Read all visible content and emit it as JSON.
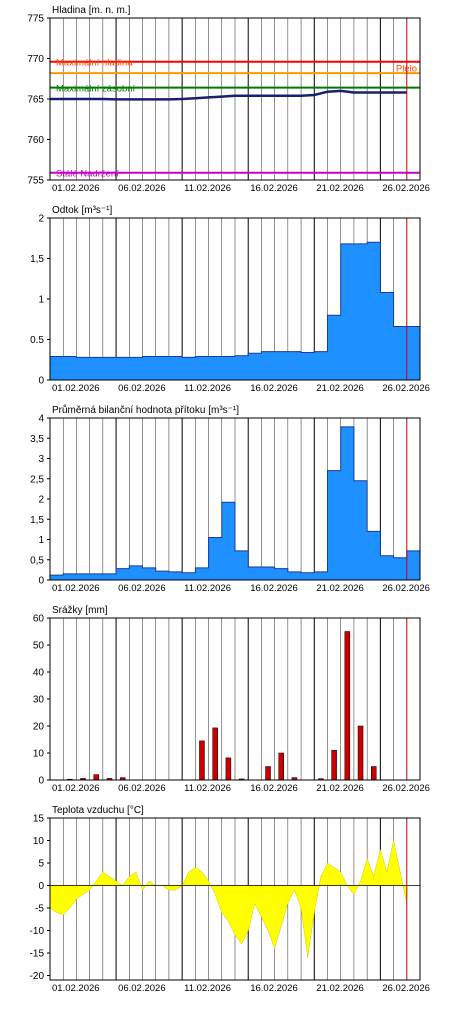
{
  "colors": {
    "frame": "#000000",
    "hladina_line": "#1a1f6e",
    "max_hladina": "#ff0000",
    "max_hladina_label": "#ff4500",
    "orange_line": "#ff9900",
    "max_zasobni": "#007a00",
    "stale_nadrzeni": "#cc00cc",
    "blue_fill": "#1e90ff",
    "blue_stroke": "#1a3a9e",
    "red_bar": "#cc0000",
    "temp_fill": "#ffff00",
    "today_marker": "#cc0000"
  },
  "x_axis": {
    "start_day": 1,
    "end_day": 29,
    "tick_labels": [
      "01.02.2026",
      "06.02.2026",
      "11.02.2026",
      "16.02.2026",
      "21.02.2026",
      "26.02.2026"
    ],
    "tick_days": [
      1,
      6,
      11,
      16,
      21,
      26
    ],
    "today_day": 28
  },
  "chart_data": [
    {
      "type": "line",
      "title": "Hladina [m. n. m.]",
      "ylim": [
        755,
        775
      ],
      "yticks": [
        755,
        760,
        765,
        770,
        775
      ],
      "reference_lines": [
        {
          "name": "Maximální hladina",
          "value": 769.6,
          "color": "#ff0000"
        },
        {
          "name": "",
          "value": 768.2,
          "color": "#ff9900"
        },
        {
          "name": "Maximální zásobní",
          "value": 766.4,
          "color": "#007a00"
        },
        {
          "name": "Stálé Nadržení",
          "value": 755.9,
          "color": "#cc00cc"
        }
      ],
      "right_label": "Plelo",
      "x": [
        1,
        2,
        3,
        4,
        5,
        6,
        7,
        8,
        9,
        10,
        11,
        12,
        13,
        14,
        15,
        16,
        17,
        18,
        19,
        20,
        21,
        22,
        23,
        24,
        25,
        26,
        27,
        28
      ],
      "values": [
        765.0,
        765.0,
        765.0,
        765.0,
        765.0,
        764.95,
        764.95,
        764.95,
        764.95,
        764.95,
        765.0,
        765.1,
        765.2,
        765.3,
        765.4,
        765.4,
        765.4,
        765.4,
        765.4,
        765.4,
        765.5,
        765.9,
        766.0,
        765.8,
        765.8,
        765.8,
        765.8,
        765.8
      ]
    },
    {
      "type": "area",
      "title": "Odtok [m³s⁻¹]",
      "ylim": [
        0,
        2
      ],
      "yticks": [
        0,
        0.5,
        1,
        1.5,
        2
      ],
      "ytick_labels": [
        "0",
        "0.5",
        "1",
        "1,5",
        "2"
      ],
      "x": [
        1,
        2,
        3,
        4,
        5,
        6,
        7,
        8,
        9,
        10,
        11,
        12,
        13,
        14,
        15,
        16,
        17,
        18,
        19,
        20,
        21,
        22,
        23,
        24,
        25,
        26,
        27,
        28
      ],
      "values": [
        0.29,
        0.29,
        0.28,
        0.28,
        0.28,
        0.28,
        0.28,
        0.29,
        0.29,
        0.29,
        0.28,
        0.29,
        0.29,
        0.29,
        0.3,
        0.33,
        0.35,
        0.35,
        0.35,
        0.34,
        0.35,
        0.8,
        1.68,
        1.68,
        1.7,
        1.08,
        0.66,
        0.66
      ]
    },
    {
      "type": "area",
      "title": "Průměrná bilanční hodnota přítoku [m³s⁻¹]",
      "ylim": [
        0,
        4
      ],
      "yticks": [
        0,
        0.5,
        1,
        1.5,
        2,
        2.5,
        3,
        3.5,
        4
      ],
      "ytick_labels": [
        "0",
        "0,5",
        "1",
        "1,5",
        "2",
        "2,5",
        "3",
        "3,5",
        "4"
      ],
      "x": [
        1,
        2,
        3,
        4,
        5,
        6,
        7,
        8,
        9,
        10,
        11,
        12,
        13,
        14,
        15,
        16,
        17,
        18,
        19,
        20,
        21,
        22,
        23,
        24,
        25,
        26,
        27,
        28
      ],
      "values": [
        0.12,
        0.15,
        0.15,
        0.15,
        0.15,
        0.28,
        0.35,
        0.3,
        0.22,
        0.2,
        0.18,
        0.3,
        1.05,
        1.92,
        0.72,
        0.32,
        0.32,
        0.28,
        0.2,
        0.18,
        0.2,
        2.7,
        3.78,
        2.45,
        1.2,
        0.6,
        0.55,
        0.72
      ]
    },
    {
      "type": "bar",
      "title": "Srážky [mm]",
      "ylim": [
        0,
        60
      ],
      "yticks": [
        0,
        10,
        20,
        30,
        40,
        50,
        60
      ],
      "x": [
        1,
        2,
        3,
        4,
        5,
        6,
        7,
        8,
        9,
        10,
        11,
        12,
        13,
        14,
        15,
        16,
        17,
        18,
        19,
        20,
        21,
        22,
        23,
        24,
        25,
        26,
        27,
        28
      ],
      "values": [
        0,
        0.3,
        0.6,
        2.0,
        0.6,
        0.9,
        0,
        0,
        0,
        0,
        0,
        14.5,
        19.3,
        8.2,
        0.4,
        0,
        5.0,
        10.0,
        0.9,
        0,
        0.5,
        11.0,
        55.0,
        20.0,
        5.0,
        0,
        0,
        0
      ]
    },
    {
      "type": "area",
      "title": "Teplota vzduchu [°C]",
      "ylim": [
        -21,
        15
      ],
      "yticks": [
        -20,
        -15,
        -10,
        -5,
        0,
        5,
        10,
        15
      ],
      "x": [
        1,
        1.5,
        2,
        2.5,
        3,
        3.5,
        4,
        4.5,
        5,
        5.5,
        6,
        6.5,
        7,
        7.5,
        8,
        8.5,
        9,
        9.5,
        10,
        10.5,
        11,
        11.5,
        12,
        12.5,
        13,
        13.5,
        14,
        14.5,
        15,
        15.5,
        16,
        16.5,
        17,
        17.5,
        18,
        18.5,
        19,
        19.5,
        20,
        20.5,
        21,
        21.5,
        22,
        22.5,
        23,
        23.5,
        24,
        24.5,
        25,
        25.5,
        26,
        26.5,
        27,
        27.5,
        28
      ],
      "values": [
        -5,
        -6,
        -6.5,
        -5,
        -3,
        -2,
        -1,
        1,
        3,
        2,
        1,
        0,
        2,
        3,
        -1,
        1,
        0,
        0,
        -1,
        -1,
        0,
        3,
        4,
        3,
        1,
        -2,
        -6,
        -8,
        -11,
        -13,
        -10,
        -4,
        -7,
        -10,
        -14,
        -9,
        -4,
        -1,
        -5,
        -16,
        -6,
        2,
        5,
        4,
        3,
        0,
        -2,
        1,
        6,
        2,
        8,
        3,
        10,
        3,
        -4
      ]
    }
  ]
}
